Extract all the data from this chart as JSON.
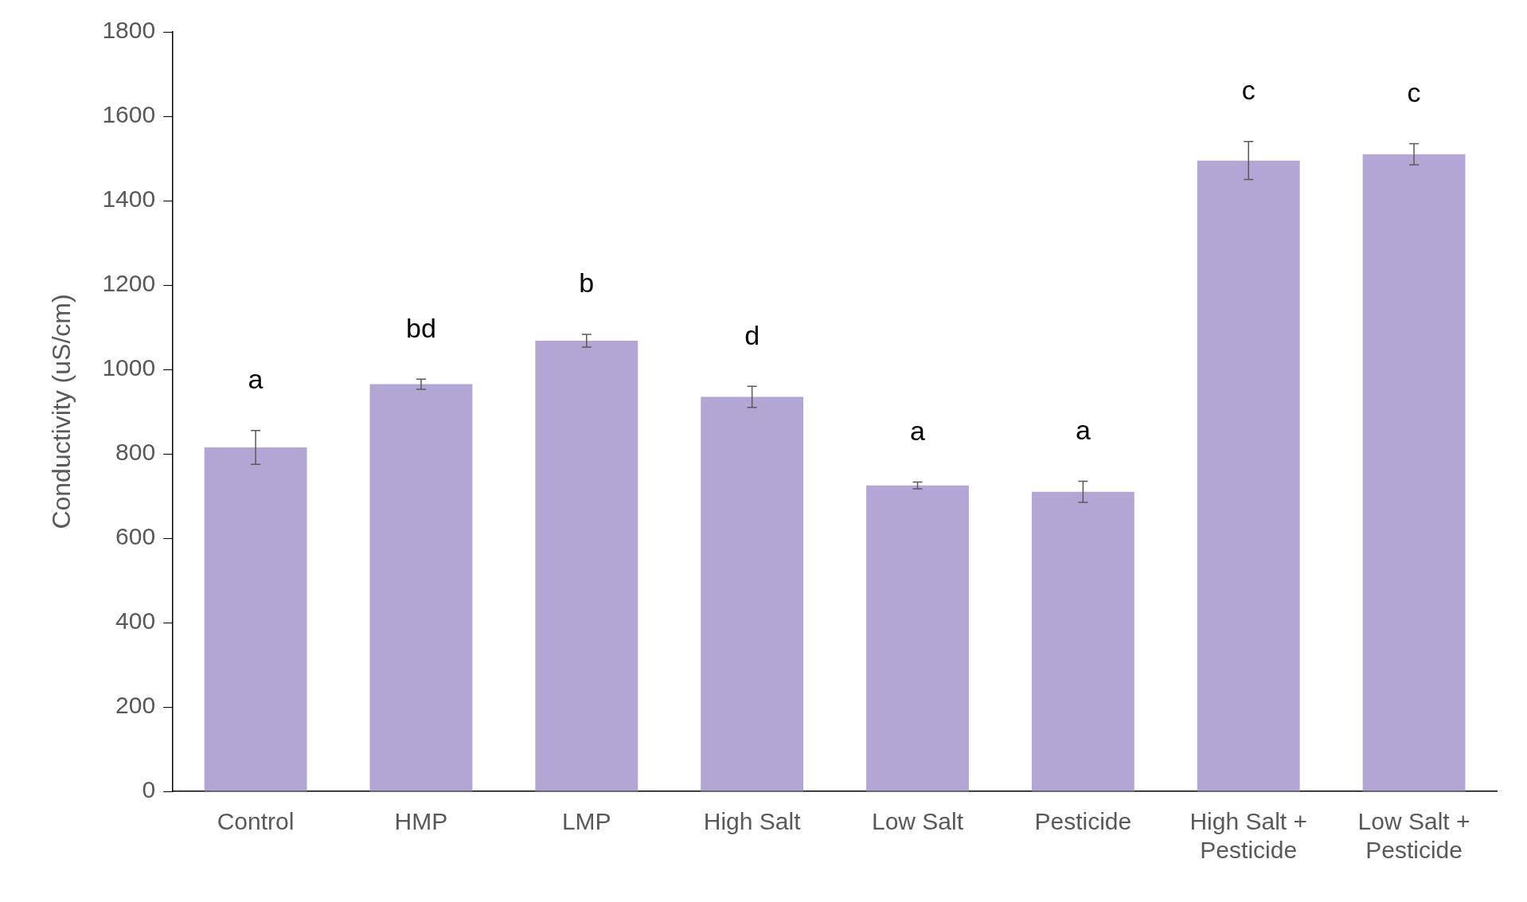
{
  "chart_data": {
    "type": "bar",
    "ylabel": "Conductivity (uS/cm)",
    "categories": [
      "Control",
      "HMP",
      "LMP",
      "High Salt",
      "Low Salt",
      "Pesticide",
      "High Salt + Pesticide",
      "Low Salt + Pesticide"
    ],
    "values": [
      815,
      965,
      1068,
      935,
      725,
      710,
      1495,
      1510
    ],
    "errors": [
      40,
      12,
      15,
      25,
      8,
      25,
      45,
      25
    ],
    "color": "#b3a6d5",
    "ylim": [
      0,
      1800
    ],
    "yticks": [
      0,
      200,
      400,
      600,
      800,
      1000,
      1200,
      1400,
      1600,
      1800
    ],
    "grid": false,
    "legend": false,
    "value_labels": [
      "a",
      "bd",
      "b",
      "d",
      "a",
      "a",
      "c",
      "c"
    ]
  }
}
